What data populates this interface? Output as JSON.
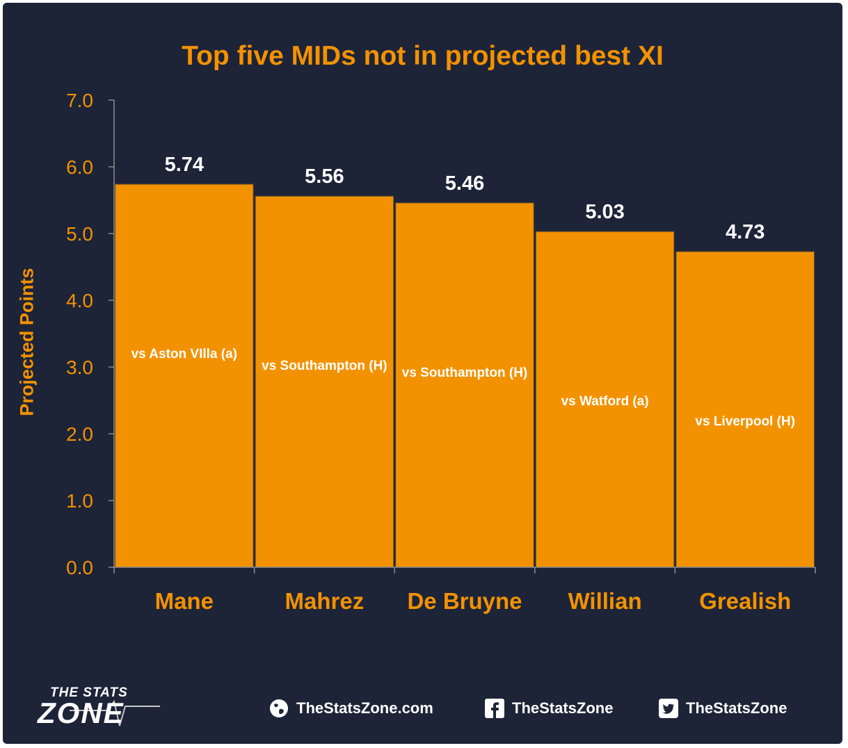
{
  "chart_data": {
    "type": "bar",
    "title": "Top five MIDs not in projected best XI",
    "xlabel": "",
    "ylabel": "Projected Points",
    "ylim": [
      0,
      7
    ],
    "yticks": [
      "0.0",
      "1.0",
      "2.0",
      "3.0",
      "4.0",
      "5.0",
      "6.0",
      "7.0"
    ],
    "categories": [
      "Mane",
      "Mahrez",
      "De Bruyne",
      "Willian",
      "Grealish"
    ],
    "values": [
      5.74,
      5.56,
      5.46,
      5.03,
      4.73
    ],
    "value_labels": [
      "5.74",
      "5.56",
      "5.46",
      "5.03",
      "4.73"
    ],
    "fixtures": [
      "vs Aston VIlla (a)",
      "vs Southampton (H)",
      "vs Southampton (H)",
      "vs Watford (a)",
      "vs Liverpool (H)"
    ],
    "grid": false,
    "bar_color": "#f39200"
  },
  "colors": {
    "background": "#1d2438",
    "accent": "#f39200",
    "text": "#ffffff"
  },
  "branding": {
    "logo_top": "THE STATS",
    "logo_bottom": "ZONE",
    "website": "TheStatsZone.com",
    "facebook": "TheStatsZone",
    "twitter": "TheStatsZone"
  },
  "icons": {
    "website": "globe-icon",
    "facebook": "facebook-icon",
    "twitter": "twitter-icon"
  }
}
